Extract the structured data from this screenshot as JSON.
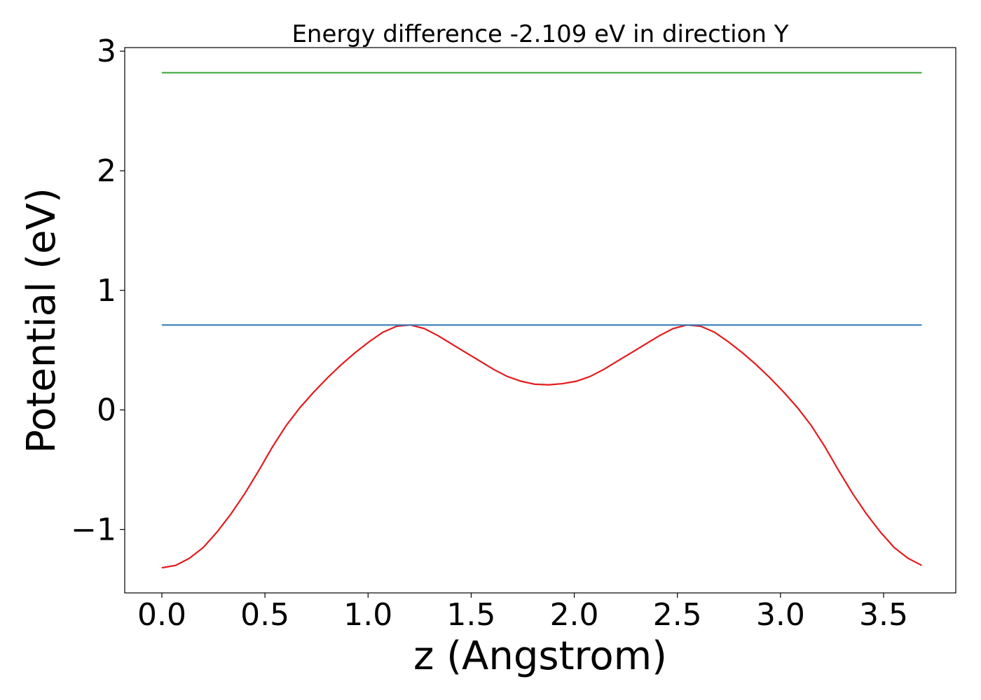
{
  "chart_data": {
    "type": "line",
    "title": "Energy difference -2.109 eV in direction Y",
    "xlabel": "z (Angstrom)",
    "ylabel": "Potential (eV)",
    "xlim": [
      -0.18,
      3.85
    ],
    "ylim": [
      -1.53,
      3.03
    ],
    "xticks": [
      0.0,
      0.5,
      1.0,
      1.5,
      2.0,
      2.5,
      3.0,
      3.5
    ],
    "xtick_labels": [
      "0.0",
      "0.5",
      "1.0",
      "1.5",
      "2.0",
      "2.5",
      "3.0",
      "3.5"
    ],
    "yticks": [
      -1,
      0,
      1,
      2,
      3
    ],
    "ytick_labels": [
      "−1",
      "0",
      "1",
      "2",
      "3"
    ],
    "grid": false,
    "series": [
      {
        "color": "#e41a1c",
        "x": [
          0.0,
          0.067,
          0.134,
          0.201,
          0.268,
          0.335,
          0.402,
          0.469,
          0.536,
          0.603,
          0.67,
          0.737,
          0.804,
          0.871,
          0.938,
          1.005,
          1.072,
          1.139,
          1.206,
          1.273,
          1.34,
          1.407,
          1.474,
          1.541,
          1.608,
          1.675,
          1.742,
          1.809,
          1.876,
          1.943,
          2.01,
          2.077,
          2.144,
          2.211,
          2.278,
          2.345,
          2.412,
          2.479,
          2.546,
          2.613,
          2.68,
          2.747,
          2.814,
          2.881,
          2.948,
          3.015,
          3.082,
          3.149,
          3.216,
          3.283,
          3.35,
          3.417,
          3.484,
          3.551,
          3.618,
          3.685
        ],
        "y": [
          -1.32,
          -1.3,
          -1.24,
          -1.15,
          -1.02,
          -0.87,
          -0.7,
          -0.51,
          -0.31,
          -0.13,
          0.02,
          0.15,
          0.27,
          0.38,
          0.48,
          0.57,
          0.65,
          0.7,
          0.71,
          0.68,
          0.62,
          0.55,
          0.48,
          0.41,
          0.34,
          0.28,
          0.24,
          0.215,
          0.21,
          0.22,
          0.24,
          0.28,
          0.34,
          0.41,
          0.48,
          0.55,
          0.62,
          0.68,
          0.71,
          0.7,
          0.65,
          0.57,
          0.48,
          0.38,
          0.27,
          0.15,
          0.02,
          -0.13,
          -0.31,
          -0.51,
          -0.7,
          -0.87,
          -1.02,
          -1.15,
          -1.24,
          -1.3
        ]
      },
      {
        "color": "#377eb8",
        "x": [
          0.0,
          3.685
        ],
        "y": [
          0.71,
          0.71
        ]
      },
      {
        "color": "#4daf4a",
        "x": [
          0.0,
          3.685
        ],
        "y": [
          2.82,
          2.82
        ]
      }
    ]
  }
}
